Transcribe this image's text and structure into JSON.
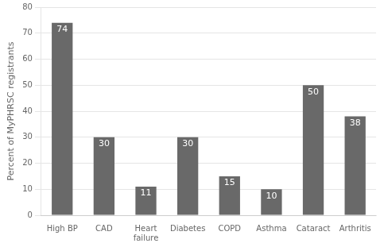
{
  "chart_data": {
    "type": "bar",
    "categories": [
      "High BP",
      "CAD",
      "Heart\nfailure",
      "Diabetes",
      "COPD",
      "Asthma",
      "Cataract",
      "Arthritis"
    ],
    "values": [
      74,
      30,
      11,
      30,
      15,
      10,
      50,
      38
    ],
    "color": "#696969",
    "ylabel": "Percent of MyPHRSC registrants",
    "ylim": [
      0,
      80
    ],
    "yticks": [
      0,
      10,
      20,
      30,
      40,
      50,
      60,
      70,
      80
    ],
    "grid": true,
    "data_labels": true
  }
}
